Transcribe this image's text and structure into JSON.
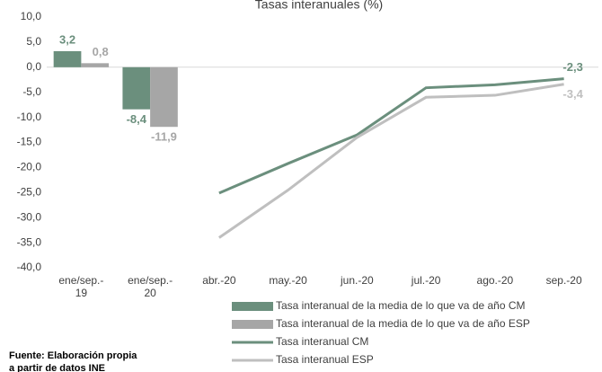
{
  "chart_data": {
    "type": "bar",
    "title": "Tasas interanuales (%)",
    "categories": [
      [
        "ene/sep.-",
        "19"
      ],
      [
        "ene/sep.-",
        "20"
      ],
      "abr.-20",
      "may.-20",
      "jun.-20",
      "jul.-20",
      "ago.-20",
      "sep.-20"
    ],
    "series": [
      {
        "name": "Tasa interanual de la media de lo que va de año CM",
        "type": "bar",
        "color": "#6b8f7d",
        "values": [
          3.2,
          -8.4,
          null,
          null,
          null,
          null,
          null,
          null
        ],
        "value_labels": [
          "3,2",
          "-8,4",
          null,
          null,
          null,
          null,
          null,
          null
        ]
      },
      {
        "name": "Tasa interanual de la media de lo que va de año ESP",
        "type": "bar",
        "color": "#a6a6a6",
        "values": [
          0.8,
          -11.9,
          null,
          null,
          null,
          null,
          null,
          null
        ],
        "value_labels": [
          "0,8",
          "-11,9",
          null,
          null,
          null,
          null,
          null,
          null
        ]
      },
      {
        "name": "Tasa interanual CM",
        "type": "line",
        "color": "#6b8f7d",
        "values": [
          null,
          null,
          -25.1,
          -19.2,
          -13.5,
          -4.1,
          -3.5,
          -2.3
        ],
        "value_labels": [
          null,
          null,
          null,
          null,
          null,
          null,
          null,
          "-2,3"
        ]
      },
      {
        "name": "Tasa interanual ESP",
        "type": "line",
        "color": "#bfbfbf",
        "values": [
          null,
          null,
          -34.0,
          -24.5,
          -14.0,
          -6.0,
          -5.6,
          -3.4
        ],
        "value_labels": [
          null,
          null,
          null,
          null,
          null,
          null,
          null,
          "-3,4"
        ]
      }
    ],
    "ylim": [
      -40,
      10
    ],
    "yticks": [
      {
        "value": -40,
        "label": "-40,0"
      },
      {
        "value": -35,
        "label": "-35,0"
      },
      {
        "value": -30,
        "label": "-30,0"
      },
      {
        "value": -25,
        "label": "-25,0"
      },
      {
        "value": -20,
        "label": "-20,0"
      },
      {
        "value": -15,
        "label": "-15,0"
      },
      {
        "value": -10,
        "label": "-10,0"
      },
      {
        "value": -5,
        "label": "-5,0"
      },
      {
        "value": 0,
        "label": "0,0"
      },
      {
        "value": 5,
        "label": "5,0"
      },
      {
        "value": 10,
        "label": "10,0"
      }
    ],
    "grid": false,
    "note": [
      "Fuente: Elaboración propia",
      "a partir de datos INE"
    ]
  }
}
